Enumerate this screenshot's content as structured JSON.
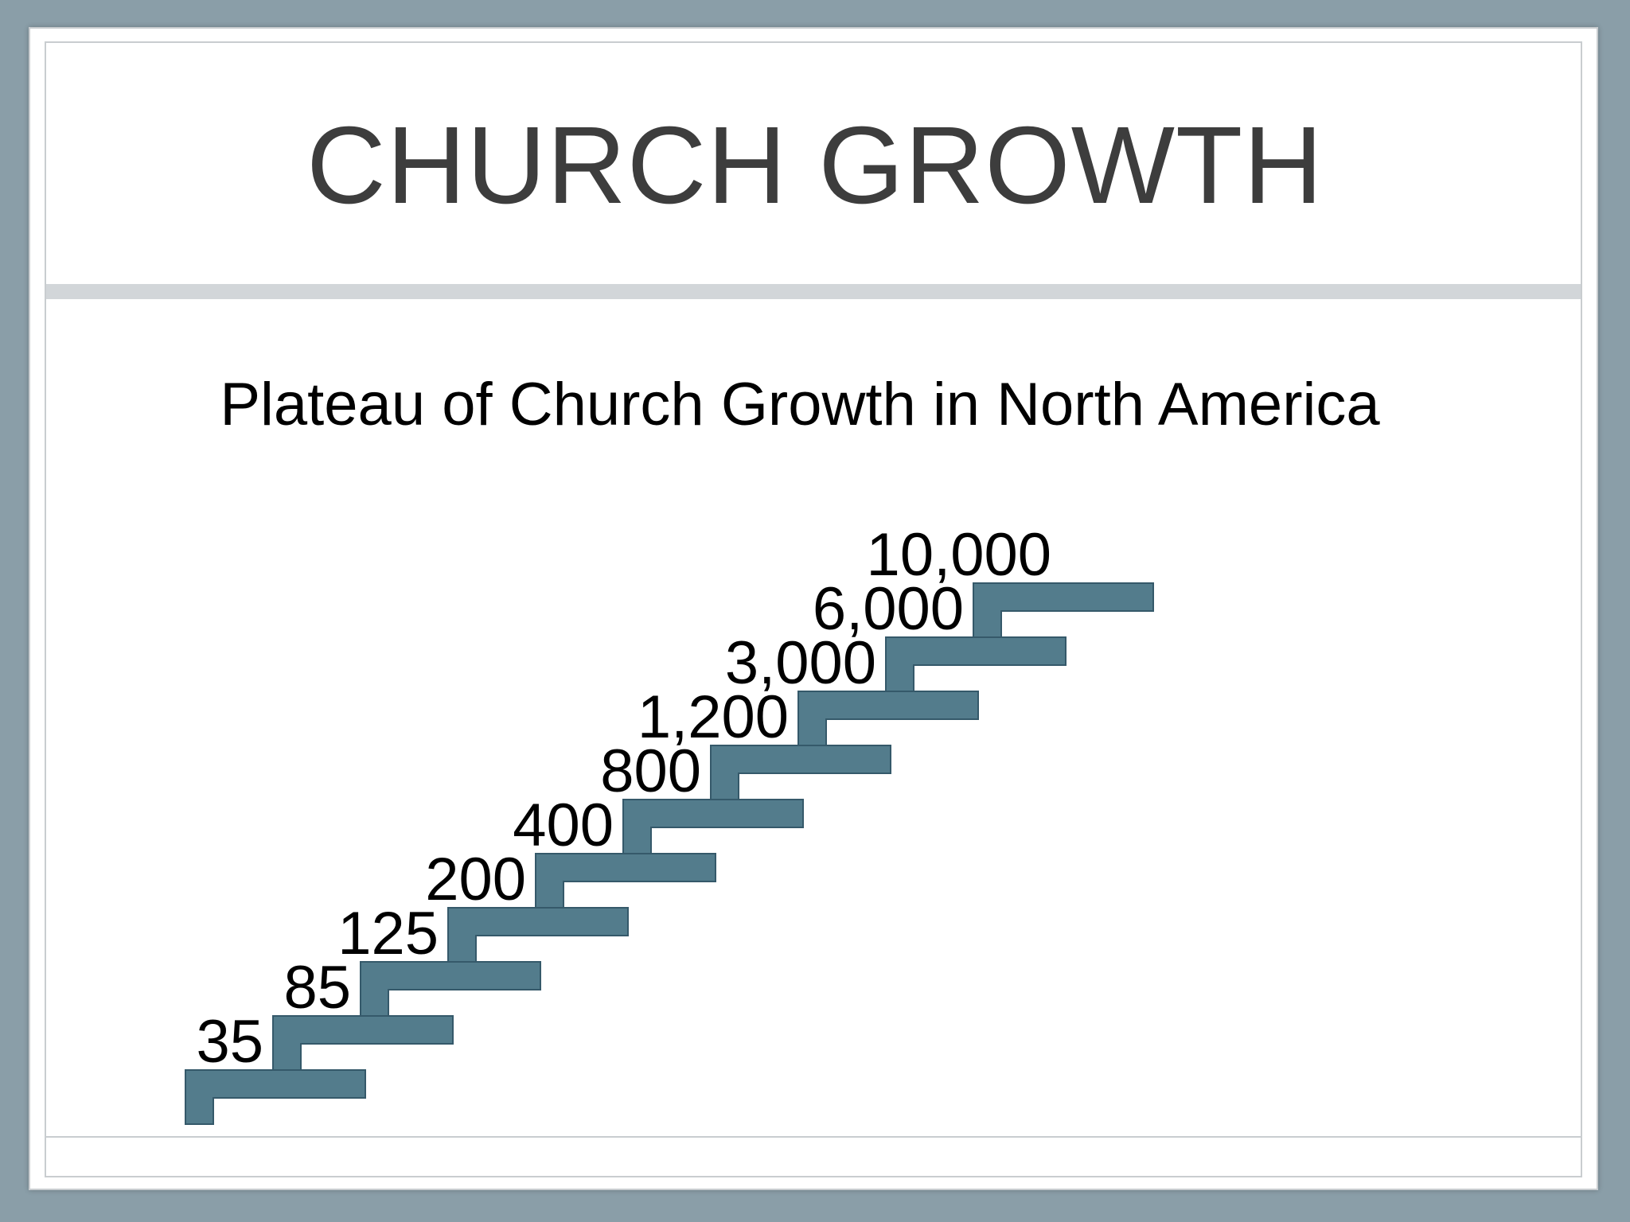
{
  "slide": {
    "title": "CHURCH GROWTH",
    "subtitle": "Plateau of Church Growth in North America"
  },
  "diagram": {
    "type": "staircase",
    "step_color": "#537c8c",
    "steps": [
      {
        "label": "35"
      },
      {
        "label": "85"
      },
      {
        "label": "125"
      },
      {
        "label": "200"
      },
      {
        "label": "400"
      },
      {
        "label": "800"
      },
      {
        "label": "1,200"
      },
      {
        "label": "3,000"
      },
      {
        "label": "6,000"
      },
      {
        "label": "10,000"
      }
    ]
  }
}
